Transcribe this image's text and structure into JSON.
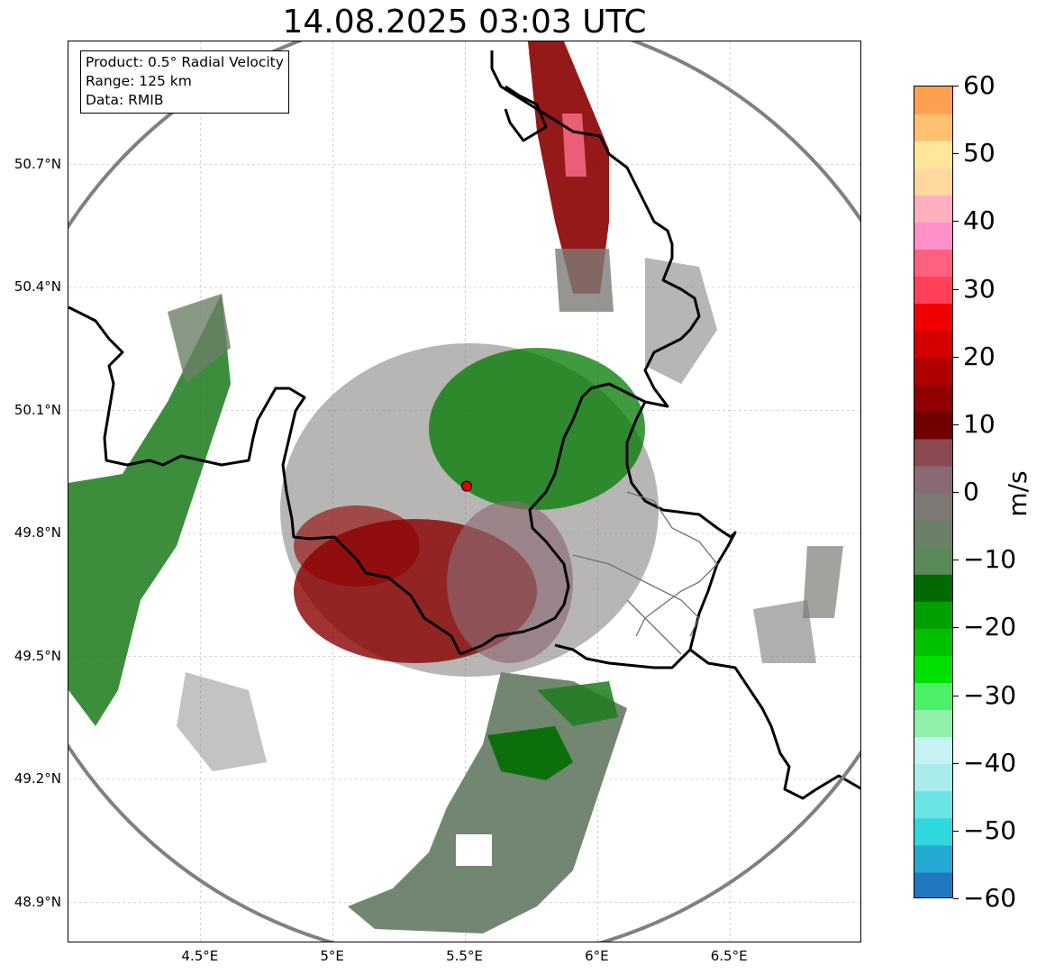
{
  "title": "14.08.2025 03:03 UTC",
  "info_box": {
    "lines": [
      "Product: 0.5° Radial Velocity",
      "Range: 125 km",
      "Data: RMIB"
    ]
  },
  "map": {
    "lon_range": [
      4.0,
      7.0
    ],
    "lat_range": [
      48.8,
      51.0
    ],
    "lat_ticks": [
      {
        "value": 50.7,
        "label": "50.7°N"
      },
      {
        "value": 50.4,
        "label": "50.4°N"
      },
      {
        "value": 50.1,
        "label": "50.1°N"
      },
      {
        "value": 49.8,
        "label": "49.8°N"
      },
      {
        "value": 49.5,
        "label": "49.5°N"
      },
      {
        "value": 49.2,
        "label": "49.2°N"
      },
      {
        "value": 48.9,
        "label": "48.9°N"
      }
    ],
    "lon_ticks": [
      {
        "value": 4.5,
        "label": "4.5°E"
      },
      {
        "value": 5.0,
        "label": "5°E"
      },
      {
        "value": 5.5,
        "label": "5.5°E"
      },
      {
        "value": 6.0,
        "label": "6°E"
      },
      {
        "value": 6.5,
        "label": "6.5°E"
      }
    ],
    "radar_site": {
      "lon": 5.505,
      "lat": 49.915
    },
    "range_km": 125,
    "colors": {
      "ring": "#808080",
      "border": "#000000",
      "site": "#e00000",
      "grid": "#b0b0b0"
    }
  },
  "colorbar": {
    "min": -60,
    "max": 60,
    "unit": "m/s",
    "ticks": [
      {
        "value": 60,
        "label": "60"
      },
      {
        "value": 50,
        "label": "50"
      },
      {
        "value": 40,
        "label": "40"
      },
      {
        "value": 30,
        "label": "30"
      },
      {
        "value": 20,
        "label": "20"
      },
      {
        "value": 10,
        "label": "10"
      },
      {
        "value": 0,
        "label": "0"
      },
      {
        "value": -10,
        "label": "−10"
      },
      {
        "value": -20,
        "label": "−20"
      },
      {
        "value": -30,
        "label": "−30"
      },
      {
        "value": -40,
        "label": "−40"
      },
      {
        "value": -50,
        "label": "−50"
      },
      {
        "value": -60,
        "label": "−60"
      }
    ],
    "stops": [
      "#1f78c0",
      "#22aad0",
      "#2ed8dc",
      "#6ae4e4",
      "#a8ecec",
      "#c6f2f2",
      "#8ef0aa",
      "#4cf068",
      "#00e000",
      "#00c000",
      "#00a000",
      "#006a00",
      "#5a8a5a",
      "#6b8068",
      "#7d7a76",
      "#8a6a72",
      "#8a4a52",
      "#700000",
      "#900000",
      "#b00000",
      "#d40000",
      "#f00000",
      "#ff4058",
      "#ff6080",
      "#ff90c8",
      "#ffb0c0",
      "#ffd8a0",
      "#ffe69a",
      "#ffc070",
      "#ffa050"
    ]
  }
}
